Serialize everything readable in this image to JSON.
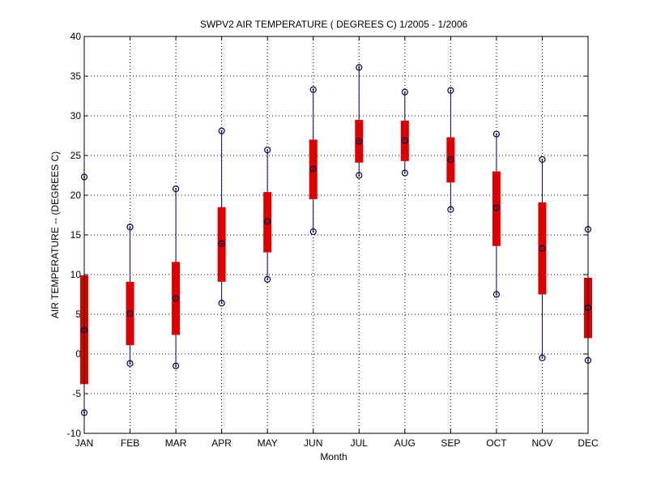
{
  "chart_data": {
    "type": "boxplot",
    "title": "SWPV2  AIR TEMPERATURE ( DEGREES C) 1/2005 - 1/2006",
    "xlabel": "Month",
    "ylabel": "AIR TEMPERATURE -- (DEGREES C)",
    "categories": [
      "JAN",
      "FEB",
      "MAR",
      "APR",
      "MAY",
      "JUN",
      "JUL",
      "AUG",
      "SEP",
      "OCT",
      "NOV",
      "DEC"
    ],
    "ylim": [
      -10,
      40
    ],
    "yticks": [
      "-10",
      "-5",
      "0",
      "5",
      "10",
      "15",
      "20",
      "25",
      "30",
      "35",
      "40"
    ],
    "grid": true,
    "colors": {
      "whisker": "#00008b",
      "box": "#dd0000",
      "marker": "#000040",
      "grid": "#000000"
    },
    "series": [
      {
        "month": "JAN",
        "min": -7.4,
        "q1": -3.8,
        "median": 3.0,
        "q3": 9.9,
        "max": 22.3
      },
      {
        "month": "FEB",
        "min": -1.2,
        "q1": 1.1,
        "median": 5.1,
        "q3": 9.1,
        "max": 16.0
      },
      {
        "month": "MAR",
        "min": -1.5,
        "q1": 2.4,
        "median": 7.0,
        "q3": 11.6,
        "max": 20.8
      },
      {
        "month": "APR",
        "min": 6.4,
        "q1": 9.1,
        "median": 13.9,
        "q3": 18.5,
        "max": 28.1
      },
      {
        "month": "MAY",
        "min": 9.4,
        "q1": 12.8,
        "median": 16.7,
        "q3": 20.4,
        "max": 25.7
      },
      {
        "month": "JUN",
        "min": 15.4,
        "q1": 19.5,
        "median": 23.3,
        "q3": 27.0,
        "max": 33.3
      },
      {
        "month": "JUL",
        "min": 22.5,
        "q1": 24.1,
        "median": 26.8,
        "q3": 29.5,
        "max": 36.1
      },
      {
        "month": "AUG",
        "min": 22.8,
        "q1": 24.3,
        "median": 26.9,
        "q3": 29.4,
        "max": 33.0
      },
      {
        "month": "SEP",
        "min": 18.2,
        "q1": 21.6,
        "median": 24.5,
        "q3": 27.3,
        "max": 33.2
      },
      {
        "month": "OCT",
        "min": 7.5,
        "q1": 13.6,
        "median": 18.4,
        "q3": 23.0,
        "max": 27.7
      },
      {
        "month": "NOV",
        "min": -0.5,
        "q1": 7.5,
        "median": 13.3,
        "q3": 19.1,
        "max": 24.5
      },
      {
        "month": "DEC",
        "min": -0.8,
        "q1": 2.0,
        "median": 5.8,
        "q3": 9.6,
        "max": 15.7
      }
    ]
  }
}
